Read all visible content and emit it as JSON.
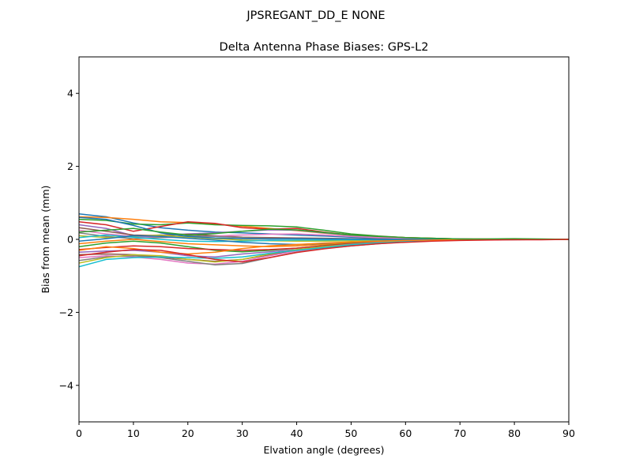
{
  "chart_data": {
    "type": "line",
    "suptitle": "JPSREGANT_DD_E  NONE",
    "title": "Delta Antenna Phase Biases: GPS-L2",
    "xlabel": "Elvation angle (degrees)",
    "ylabel": "Bias from mean (mm)",
    "xlim": [
      0,
      90
    ],
    "ylim": [
      -5,
      5
    ],
    "xticks": [
      0,
      10,
      20,
      30,
      40,
      50,
      60,
      70,
      80,
      90
    ],
    "yticks": [
      -4,
      -2,
      0,
      2,
      4
    ],
    "ytick_labels": [
      "−4",
      "−2",
      "0",
      "2",
      "4"
    ],
    "grid": false,
    "legend": "none",
    "x": [
      0,
      5,
      10,
      15,
      20,
      25,
      30,
      35,
      40,
      45,
      50,
      55,
      60,
      65,
      70,
      75,
      80,
      85,
      90
    ],
    "colors": [
      "#1f77b4",
      "#ff7f0e",
      "#2ca02c",
      "#d62728",
      "#9467bd",
      "#8c564b",
      "#e377c2",
      "#7f7f7f",
      "#bcbd22",
      "#17becf"
    ],
    "series": [
      {
        "values": [
          0.7,
          0.62,
          0.45,
          0.32,
          0.25,
          0.2,
          0.18,
          0.15,
          0.12,
          0.09,
          0.06,
          0.04,
          0.02,
          0.01,
          0.0,
          0.0,
          0.0,
          0.0,
          0.0
        ]
      },
      {
        "values": [
          0.62,
          0.6,
          0.55,
          0.48,
          0.46,
          0.42,
          0.36,
          0.3,
          0.24,
          0.17,
          0.11,
          0.07,
          0.04,
          0.02,
          0.01,
          0.0,
          0.0,
          0.0,
          0.0
        ]
      },
      {
        "values": [
          0.55,
          0.52,
          0.42,
          0.4,
          0.45,
          0.4,
          0.38,
          0.37,
          0.34,
          0.25,
          0.15,
          0.09,
          0.05,
          0.03,
          0.01,
          0.0,
          0.01,
          0.0,
          0.0
        ]
      },
      {
        "values": [
          0.48,
          0.4,
          0.22,
          0.35,
          0.48,
          0.44,
          0.32,
          0.28,
          0.3,
          0.2,
          0.12,
          0.08,
          0.05,
          0.03,
          0.01,
          0.01,
          0.0,
          0.0,
          0.0
        ]
      },
      {
        "values": [
          0.4,
          0.3,
          0.1,
          0.12,
          0.15,
          0.18,
          0.22,
          0.26,
          0.25,
          0.18,
          0.11,
          0.07,
          0.04,
          0.02,
          0.01,
          0.0,
          0.0,
          0.0,
          0.0
        ]
      },
      {
        "values": [
          0.32,
          0.22,
          0.12,
          0.1,
          0.14,
          0.1,
          0.06,
          0.05,
          0.04,
          0.03,
          0.02,
          0.01,
          0.01,
          0.0,
          0.0,
          0.0,
          0.0,
          0.0,
          0.0
        ]
      },
      {
        "values": [
          0.25,
          0.15,
          0.08,
          0.05,
          0.06,
          0.09,
          0.12,
          0.14,
          0.15,
          0.12,
          0.08,
          0.05,
          0.03,
          0.01,
          0.0,
          0.0,
          0.0,
          0.0,
          0.0
        ]
      },
      {
        "values": [
          0.18,
          0.08,
          0.02,
          0.05,
          0.1,
          0.08,
          0.05,
          0.03,
          0.02,
          0.02,
          0.01,
          0.01,
          0.0,
          0.0,
          0.0,
          0.0,
          0.0,
          0.0,
          0.0
        ]
      },
      {
        "values": [
          0.1,
          0.05,
          0.08,
          0.12,
          0.06,
          0.02,
          -0.02,
          -0.04,
          -0.05,
          -0.05,
          -0.04,
          -0.03,
          -0.02,
          -0.01,
          0.0,
          0.0,
          0.0,
          0.0,
          0.0
        ]
      },
      {
        "values": [
          0.05,
          0.12,
          0.06,
          0.0,
          -0.05,
          -0.06,
          -0.05,
          -0.03,
          -0.02,
          -0.02,
          -0.01,
          -0.01,
          0.0,
          0.0,
          0.0,
          0.0,
          0.0,
          0.0,
          0.0
        ]
      },
      {
        "values": [
          -0.05,
          0.02,
          0.1,
          0.08,
          0.03,
          -0.02,
          -0.08,
          -0.12,
          -0.14,
          -0.12,
          -0.08,
          -0.05,
          -0.03,
          -0.02,
          -0.01,
          0.0,
          0.0,
          0.0,
          0.0
        ]
      },
      {
        "values": [
          -0.12,
          -0.05,
          0.0,
          -0.06,
          -0.12,
          -0.15,
          -0.18,
          -0.2,
          -0.18,
          -0.14,
          -0.1,
          -0.06,
          -0.03,
          -0.02,
          -0.01,
          0.0,
          0.0,
          0.0,
          0.0
        ]
      },
      {
        "values": [
          -0.2,
          -0.1,
          -0.05,
          -0.1,
          -0.2,
          -0.3,
          -0.34,
          -0.3,
          -0.24,
          -0.17,
          -0.11,
          -0.07,
          -0.04,
          -0.02,
          -0.01,
          0.0,
          0.0,
          0.0,
          0.0
        ]
      },
      {
        "values": [
          -0.28,
          -0.22,
          -0.18,
          -0.2,
          -0.25,
          -0.28,
          -0.3,
          -0.28,
          -0.24,
          -0.18,
          -0.12,
          -0.08,
          -0.05,
          -0.03,
          -0.01,
          -0.01,
          0.0,
          0.0,
          0.0
        ]
      },
      {
        "values": [
          -0.35,
          -0.32,
          -0.3,
          -0.35,
          -0.45,
          -0.48,
          -0.4,
          -0.34,
          -0.28,
          -0.2,
          -0.13,
          -0.08,
          -0.05,
          -0.03,
          -0.02,
          -0.01,
          0.0,
          0.0,
          0.0
        ]
      },
      {
        "values": [
          -0.42,
          -0.4,
          -0.42,
          -0.48,
          -0.55,
          -0.6,
          -0.55,
          -0.42,
          -0.3,
          -0.22,
          -0.15,
          -0.1,
          -0.06,
          -0.03,
          -0.02,
          -0.01,
          0.0,
          0.0,
          0.0
        ]
      },
      {
        "values": [
          -0.5,
          -0.45,
          -0.48,
          -0.55,
          -0.65,
          -0.68,
          -0.6,
          -0.45,
          -0.32,
          -0.24,
          -0.17,
          -0.11,
          -0.07,
          -0.04,
          -0.02,
          -0.01,
          0.0,
          0.0,
          0.0
        ]
      },
      {
        "values": [
          -0.58,
          -0.48,
          -0.45,
          -0.5,
          -0.6,
          -0.7,
          -0.66,
          -0.5,
          -0.35,
          -0.25,
          -0.18,
          -0.12,
          -0.07,
          -0.04,
          -0.02,
          -0.01,
          -0.01,
          0.0,
          0.0
        ]
      },
      {
        "values": [
          -0.65,
          -0.5,
          -0.42,
          -0.45,
          -0.55,
          -0.62,
          -0.55,
          -0.4,
          -0.28,
          -0.2,
          -0.14,
          -0.09,
          -0.05,
          -0.03,
          -0.02,
          -0.01,
          0.0,
          0.0,
          0.0
        ]
      },
      {
        "values": [
          -0.75,
          -0.55,
          -0.5,
          -0.48,
          -0.5,
          -0.52,
          -0.48,
          -0.38,
          -0.3,
          -0.22,
          -0.15,
          -0.1,
          -0.06,
          -0.04,
          -0.02,
          -0.01,
          0.0,
          0.0,
          0.0
        ]
      },
      {
        "values": [
          0.6,
          0.55,
          0.38,
          0.18,
          0.08,
          0.04,
          0.02,
          0.01,
          0.02,
          0.01,
          0.01,
          0.0,
          0.0,
          0.0,
          0.0,
          0.0,
          0.0,
          0.0,
          0.0
        ]
      },
      {
        "values": [
          -0.3,
          -0.2,
          -0.25,
          -0.35,
          -0.4,
          -0.35,
          -0.25,
          -0.18,
          -0.14,
          -0.1,
          -0.07,
          -0.05,
          -0.03,
          -0.02,
          -0.01,
          0.0,
          0.0,
          0.0,
          0.0
        ]
      },
      {
        "values": [
          0.2,
          0.25,
          0.3,
          0.2,
          0.12,
          0.16,
          0.22,
          0.28,
          0.26,
          0.19,
          0.12,
          0.08,
          0.05,
          0.03,
          0.01,
          0.01,
          0.02,
          0.01,
          0.0
        ]
      },
      {
        "values": [
          -0.45,
          -0.35,
          -0.28,
          -0.3,
          -0.42,
          -0.55,
          -0.62,
          -0.5,
          -0.36,
          -0.26,
          -0.18,
          -0.12,
          -0.08,
          -0.05,
          -0.03,
          -0.02,
          -0.01,
          -0.01,
          0.0
        ]
      }
    ]
  }
}
